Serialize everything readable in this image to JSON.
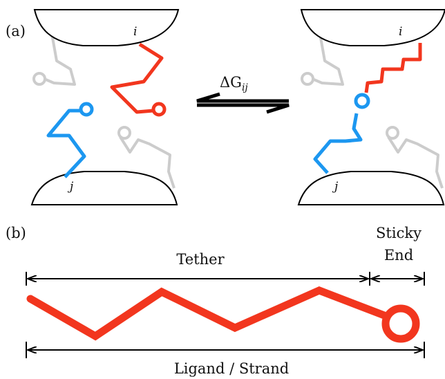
{
  "colors": {
    "red": "#f2361e",
    "blue": "#1c97f0",
    "grey": "#cccccc",
    "black": "#000000"
  },
  "panel_a": {
    "label": "(a)",
    "left": {
      "top_particle_label": "i",
      "bottom_particle_label": "j"
    },
    "right": {
      "top_particle_label": "i",
      "bottom_particle_label": "j"
    },
    "free_energy_symbol": "ΔG",
    "free_energy_subscript": "ij"
  },
  "panel_b": {
    "label": "(b)",
    "tether_label": "Tether",
    "sticky_end_label_line1": "Sticky",
    "sticky_end_label_line2": "End",
    "ligand_label": "Ligand / Strand"
  }
}
